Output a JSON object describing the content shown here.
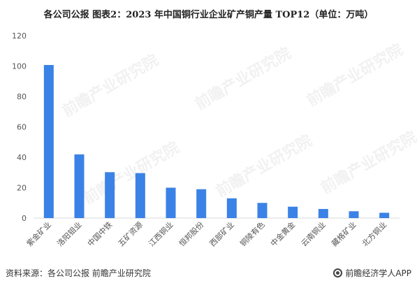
{
  "title": "各公司公报  图表2：2023 年中国铜行业企业矿产铜产量 TOP12（单位：万吨）",
  "source": "资料来源：各公司公报 前瞻产业研究院",
  "brand": "前瞻经济学人APP",
  "watermark": "前瞻产业研究院",
  "bar_color": "#3b82e6",
  "chart_data": {
    "type": "bar",
    "title": "图表2：2023 年中国铜行业企业矿产铜产量 TOP12（单位：万吨）",
    "categories": [
      "紫金矿业",
      "洛阳钼业",
      "中国中铁",
      "五矿资源",
      "江西铜业",
      "恒邦股份",
      "西部矿业",
      "铜陵有色",
      "中金黄金",
      "云南铜业",
      "藏格矿业",
      "北方铜业"
    ],
    "values": [
      100.7,
      41.9,
      30.2,
      29.6,
      20.0,
      19.0,
      13.0,
      10.0,
      7.5,
      6.0,
      4.5,
      3.5
    ],
    "ylim": [
      0,
      120
    ],
    "yticks": [
      0,
      20,
      40,
      60,
      80,
      100,
      120
    ],
    "grid": false,
    "legend": "none"
  }
}
